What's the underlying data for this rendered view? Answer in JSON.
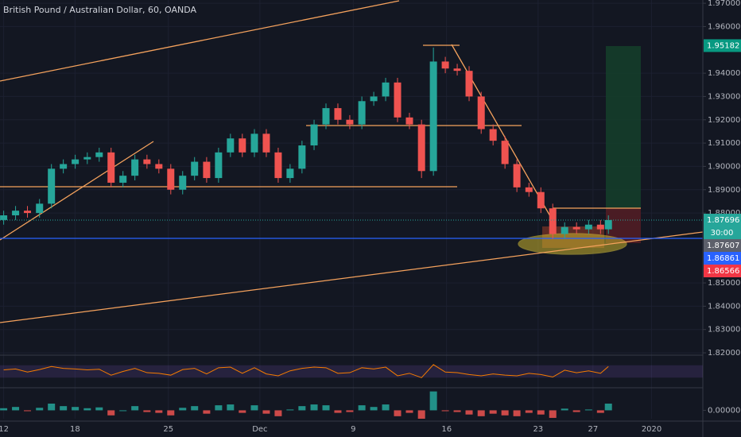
{
  "chart_data": [
    {
      "type": "candlestick",
      "title": "British Pound / Australian Dollar, 60, OANDA",
      "x": [
        0,
        0.65,
        1.3,
        1.96,
        2.61,
        3.26,
        3.91,
        4.57,
        5.22,
        5.87,
        6.52,
        7.17,
        7.83,
        8.48,
        9.13,
        9.78,
        10.43,
        11.09,
        11.74,
        12.39,
        13.04,
        13.7,
        14.35,
        15,
        15.65,
        16.3,
        16.96,
        17.61,
        18.26,
        18.91,
        19.57,
        20.22,
        20.87,
        21.52,
        22.17,
        22.83,
        23.48,
        24.13,
        24.78,
        25.43,
        26.09,
        26.74,
        27.39,
        28.04,
        28.7,
        29.35,
        30,
        30.65,
        31.3,
        31.96,
        32.61,
        33.04
      ],
      "open": [
        1.877,
        1.879,
        1.881,
        1.88,
        1.884,
        1.899,
        1.901,
        1.903,
        1.904,
        1.906,
        1.893,
        1.896,
        1.903,
        1.901,
        1.899,
        1.89,
        1.896,
        1.902,
        1.895,
        1.906,
        1.912,
        1.906,
        1.914,
        1.906,
        1.895,
        1.899,
        1.909,
        1.918,
        1.925,
        1.92,
        1.918,
        1.928,
        1.93,
        1.936,
        1.921,
        1.918,
        1.898,
        1.945,
        1.942,
        1.941,
        1.93,
        1.916,
        1.911,
        1.901,
        1.891,
        1.889,
        1.882,
        1.871,
        1.874,
        1.873,
        1.875,
        1.873
      ],
      "high": [
        1.881,
        1.883,
        1.883,
        1.886,
        1.901,
        1.903,
        1.905,
        1.906,
        1.908,
        1.908,
        1.898,
        1.905,
        1.905,
        1.903,
        1.901,
        1.898,
        1.904,
        1.904,
        1.908,
        1.914,
        1.914,
        1.916,
        1.916,
        1.908,
        1.901,
        1.911,
        1.92,
        1.927,
        1.927,
        1.922,
        1.93,
        1.932,
        1.938,
        1.938,
        1.923,
        1.92,
        1.951,
        1.947,
        1.944,
        1.943,
        1.932,
        1.918,
        1.913,
        1.903,
        1.893,
        1.891,
        1.884,
        1.876,
        1.876,
        1.877,
        1.877,
        1.879
      ],
      "low": [
        1.875,
        1.877,
        1.878,
        1.878,
        1.882,
        1.897,
        1.899,
        1.901,
        1.902,
        1.891,
        1.891,
        1.894,
        1.899,
        1.897,
        1.888,
        1.888,
        1.894,
        1.893,
        1.893,
        1.904,
        1.904,
        1.904,
        1.904,
        1.893,
        1.893,
        1.897,
        1.907,
        1.916,
        1.918,
        1.916,
        1.916,
        1.926,
        1.928,
        1.919,
        1.916,
        1.895,
        1.896,
        1.94,
        1.939,
        1.928,
        1.914,
        1.909,
        1.899,
        1.889,
        1.887,
        1.88,
        1.869,
        1.869,
        1.871,
        1.871,
        1.871,
        1.871
      ],
      "close": [
        1.879,
        1.881,
        1.88,
        1.884,
        1.899,
        1.901,
        1.903,
        1.904,
        1.906,
        1.893,
        1.896,
        1.903,
        1.901,
        1.899,
        1.89,
        1.896,
        1.902,
        1.895,
        1.906,
        1.912,
        1.906,
        1.914,
        1.906,
        1.895,
        1.899,
        1.909,
        1.918,
        1.925,
        1.92,
        1.918,
        1.928,
        1.93,
        1.936,
        1.921,
        1.918,
        1.898,
        1.945,
        1.942,
        1.941,
        1.93,
        1.916,
        1.911,
        1.901,
        1.891,
        1.889,
        1.882,
        1.871,
        1.874,
        1.873,
        1.875,
        1.873,
        1.87696
      ],
      "up_color": "#26a69a",
      "down_color": "#ef5350",
      "xlim": [
        -0.2,
        38.2
      ],
      "xticks": [
        {
          "value": 0,
          "label": "12"
        },
        {
          "value": 3.9,
          "label": "18"
        },
        {
          "value": 9,
          "label": "25"
        },
        {
          "value": 14,
          "label": "Dec"
        },
        {
          "value": 19.1,
          "label": "9"
        },
        {
          "value": 24.2,
          "label": "16"
        },
        {
          "value": 29.2,
          "label": "23"
        },
        {
          "value": 32.2,
          "label": "27"
        },
        {
          "value": 35.4,
          "label": "2020"
        }
      ],
      "ylim": [
        1.819,
        1.9714
      ],
      "yticks": [
        {
          "value": 1.97,
          "label": "1.97000"
        },
        {
          "value": 1.96,
          "label": "1.96000"
        },
        {
          "value": 1.94,
          "label": "1.94000"
        },
        {
          "value": 1.93,
          "label": "1.93000"
        },
        {
          "value": 1.92,
          "label": "1.92000"
        },
        {
          "value": 1.91,
          "label": "1.91000"
        },
        {
          "value": 1.9,
          "label": "1.90000"
        },
        {
          "value": 1.89,
          "label": "1.89000"
        },
        {
          "value": 1.88,
          "label": "1.88000"
        },
        {
          "value": 1.85,
          "label": "1.85000"
        },
        {
          "value": 1.84,
          "label": "1.84000"
        },
        {
          "value": 1.83,
          "label": "1.83000"
        },
        {
          "value": 1.82,
          "label": "1.82000"
        }
      ],
      "grid": true,
      "price_tags": [
        {
          "value": 1.95182,
          "color": "#089981"
        },
        {
          "value": 1.87696,
          "color": "#26a69a",
          "countdown": "30:00"
        },
        {
          "value": 1.87607,
          "color": "#5d606b"
        },
        {
          "value": 1.86861,
          "color": "#2962ff"
        },
        {
          "value": 1.86566,
          "color": "#f23645"
        }
      ]
    },
    {
      "type": "line",
      "color": "#f57c00",
      "ylim": [
        0,
        100
      ],
      "band": [
        30,
        70
      ],
      "values": [
        55,
        58,
        48,
        56,
        66,
        60,
        58,
        55,
        57,
        38,
        50,
        60,
        46,
        44,
        38,
        56,
        60,
        42,
        62,
        64,
        44,
        62,
        42,
        36,
        52,
        60,
        64,
        62,
        44,
        46,
        62,
        58,
        64,
        36,
        44,
        30,
        72,
        48,
        46,
        40,
        36,
        42,
        38,
        36,
        44,
        40,
        32,
        54,
        46,
        52,
        44,
        66
      ]
    },
    {
      "type": "bar",
      "up_color": "#26a69a",
      "down_color": "#ef5350",
      "ylim": [
        -0.002,
        0.005
      ],
      "yticks": [
        {
          "value": 0,
          "label": "0.00000"
        }
      ],
      "values": [
        0.0005,
        0.0008,
        -0.0002,
        0.0006,
        0.0016,
        0.001,
        0.0008,
        0.0005,
        0.0007,
        -0.0012,
        0,
        0.001,
        -0.0004,
        -0.0006,
        -0.0012,
        0.0006,
        0.001,
        -0.0008,
        0.0012,
        0.0014,
        -0.0006,
        0.0012,
        -0.0008,
        -0.0014,
        0.0002,
        0.001,
        0.0014,
        0.0012,
        -0.0006,
        -0.0004,
        0.0012,
        0.0008,
        0.0014,
        -0.0014,
        -0.0006,
        -0.002,
        0.0045,
        -0.0002,
        -0.0004,
        -0.001,
        -0.0014,
        -0.0008,
        -0.0012,
        -0.0014,
        -0.0006,
        -0.001,
        -0.0018,
        0.0004,
        -0.0004,
        0.0002,
        -0.0006,
        0.0016
      ]
    }
  ]
}
